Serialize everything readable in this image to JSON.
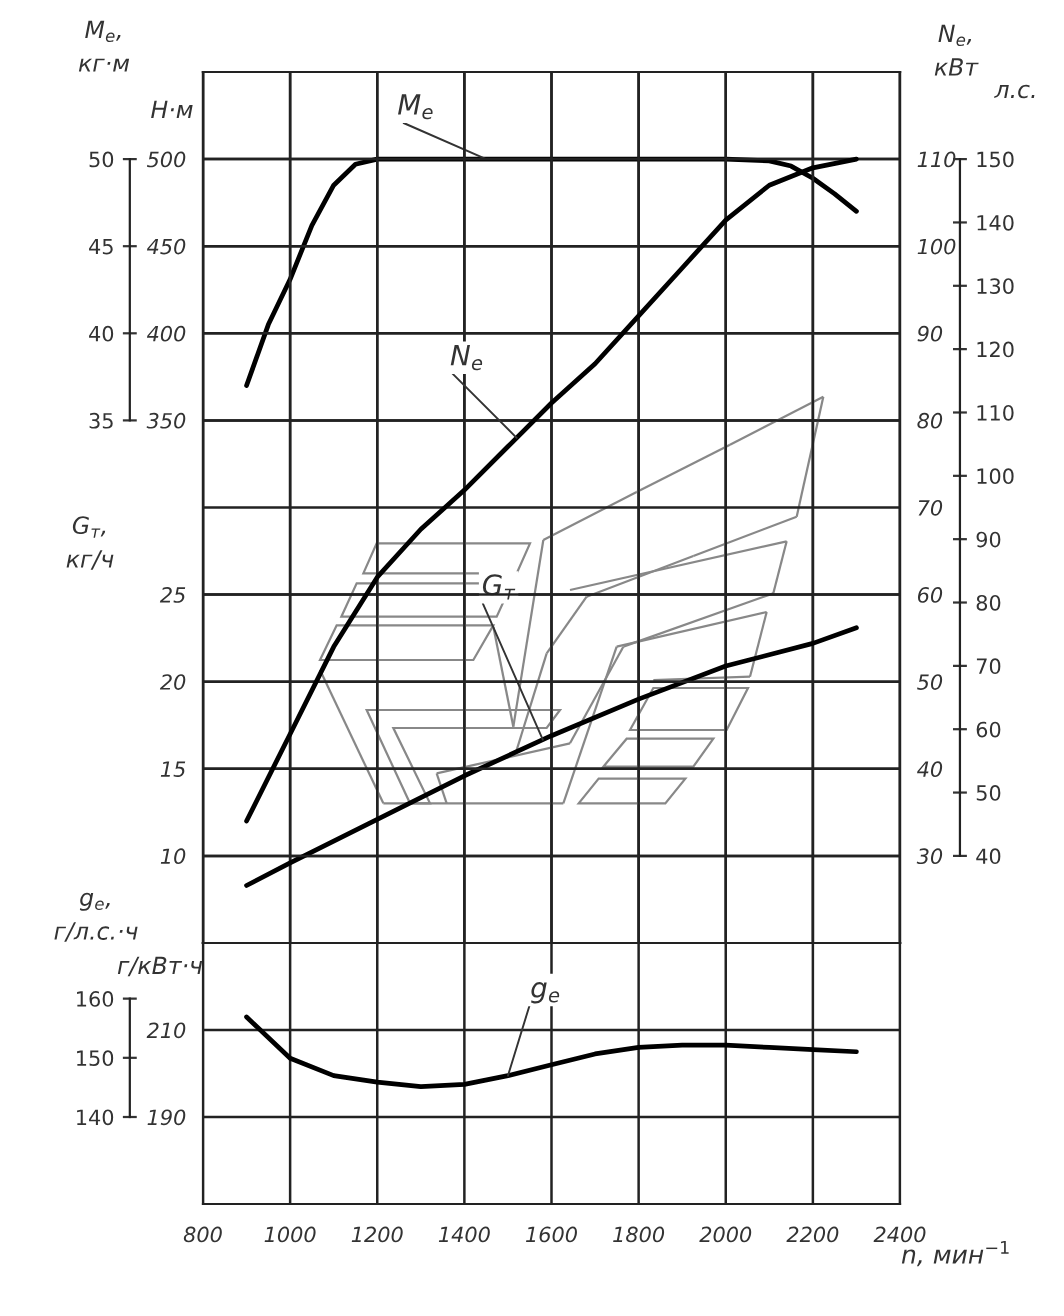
{
  "chart_data": [
    {
      "type": "line",
      "ylabel": "Н·м",
      "y2label": "M$_{e}$,\nкг·м",
      "xlim": [
        800,
        2400
      ],
      "xticks": [
        800,
        1000,
        1200,
        1400,
        1600,
        1800,
        2000,
        2200,
        2400
      ],
      "tick_labels": "y",
      "ylim": [
        50,
        550
      ],
      "yticks": [
        350,
        400,
        450,
        500
      ],
      "y2lim": [
        5,
        55
      ],
      "y2ticks": [
        35,
        40,
        45,
        50
      ],
      "grid": true,
      "series": [
        {
          "name": "M$_{e}$",
          "color": "#000000",
          "x": [
            900,
            950,
            1000,
            1050,
            1100,
            1150,
            1200,
            1400,
            1600,
            1800,
            2000,
            2100,
            2150,
            2200,
            2250,
            2300
          ],
          "values": [
            370,
            405,
            431,
            462,
            485,
            497,
            500,
            500,
            500,
            500,
            500,
            499,
            496,
            489,
            480,
            470
          ]
        }
      ]
    },
    {
      "type": "line",
      "ylabel": "G$_{т}$,\nкг/ч",
      "y2label": "N$_{e}$,\nкВт",
      "y3label": "л.с.",
      "xlim": [
        800,
        2400
      ],
      "xticks": [
        800,
        1000,
        1200,
        1400,
        1600,
        1800,
        2000,
        2200,
        2400
      ],
      "tick_labels": "y",
      "ylim": [
        5,
        55
      ],
      "yticks": [
        10,
        15,
        20,
        25
      ],
      "y2lim": [
        20,
        120
      ],
      "y2ticks": [
        30,
        40,
        50,
        60,
        70,
        80,
        90,
        100,
        110
      ],
      "y3lim": [
        26.25,
        163.75
      ],
      "y3ticks": [
        40,
        50,
        60,
        70,
        80,
        90,
        100,
        110,
        120,
        130,
        140,
        150
      ],
      "grid": true,
      "series": [
        {
          "name": "N$_{e}$",
          "color": "#000000",
          "axis": "y2",
          "x": [
            900,
            1000,
            1100,
            1200,
            1300,
            1400,
            1500,
            1600,
            1700,
            1800,
            1900,
            2000,
            2100,
            2200,
            2300
          ],
          "values": [
            34,
            44,
            54,
            62,
            67.5,
            72,
            77,
            82,
            86.5,
            92,
            97.5,
            103,
            107,
            109,
            110
          ]
        },
        {
          "name": "G$_{т}$",
          "color": "#000000",
          "x": [
            900,
            1000,
            1200,
            1400,
            1600,
            1800,
            2000,
            2200,
            2300
          ],
          "values": [
            8.3,
            9.6,
            12.1,
            14.6,
            16.9,
            19.0,
            20.9,
            22.2,
            23.1
          ]
        }
      ]
    },
    {
      "type": "line",
      "ylabel": "г/кВт·ч",
      "y2label": "g$_{e}$,\nг/л.с.·ч",
      "xlabel": "n, мин$^{−1}$",
      "xlim": [
        800,
        2400
      ],
      "xticks": [
        800,
        1000,
        1200,
        1400,
        1600,
        1800,
        2000,
        2200,
        2400
      ],
      "ylim": [
        170,
        230
      ],
      "yticks": [
        190,
        210
      ],
      "y2lim": [
        125.3,
        169.4
      ],
      "y2ticks": [
        140,
        150,
        160
      ],
      "grid": true,
      "series": [
        {
          "name": "g$_{e}$",
          "color": "#000000",
          "x": [
            900,
            1000,
            1100,
            1200,
            1300,
            1400,
            1500,
            1600,
            1700,
            1800,
            1900,
            2000,
            2100,
            2200,
            2300
          ],
          "values": [
            213,
            203.5,
            199.5,
            198,
            197,
            197.5,
            199.5,
            202,
            204.5,
            206,
            206.5,
            206.5,
            206,
            205.5,
            205
          ]
        }
      ]
    }
  ]
}
